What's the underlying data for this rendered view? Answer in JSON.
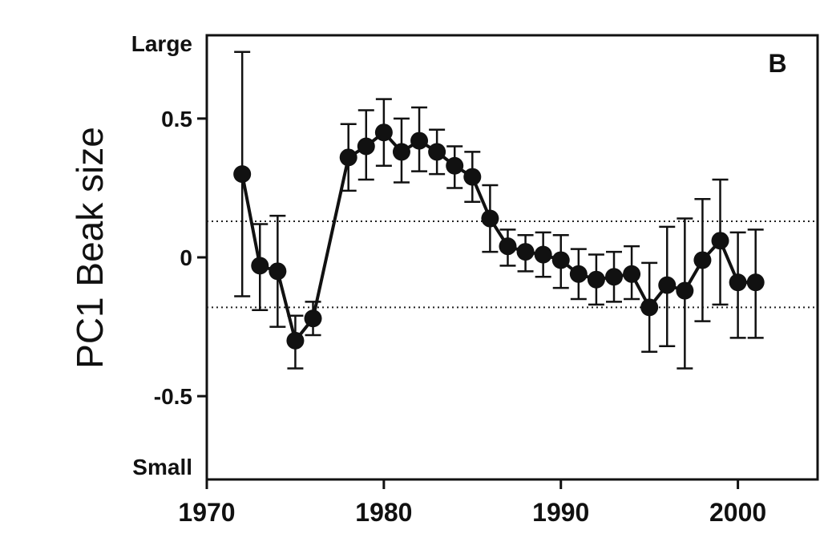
{
  "chart_data": {
    "type": "line",
    "panel_label": "B",
    "ylabel": "PC1 Beak size",
    "y_end_labels": {
      "top": "Large",
      "bottom": "Small"
    },
    "x_ticks": [
      "1970",
      "1980",
      "1990",
      "2000"
    ],
    "y_ticks": [
      "0.5",
      "0",
      "-0.5"
    ],
    "xlim": [
      1970,
      2004.5
    ],
    "ylim": [
      -0.8,
      0.8
    ],
    "reference_lines": [
      0.13,
      -0.18
    ],
    "series": [
      {
        "x": [
          1972,
          1973,
          1974,
          1975,
          1976,
          1978,
          1979,
          1980,
          1981,
          1982,
          1983,
          1984,
          1985,
          1986,
          1987,
          1988,
          1989,
          1990,
          1991,
          1992,
          1993,
          1994,
          1995,
          1996,
          1997,
          1998,
          1999,
          2000,
          2001
        ],
        "y": [
          0.3,
          -0.03,
          -0.05,
          -0.3,
          -0.22,
          0.36,
          0.4,
          0.45,
          0.38,
          0.42,
          0.38,
          0.33,
          0.29,
          0.14,
          0.04,
          0.02,
          0.01,
          -0.01,
          -0.06,
          -0.08,
          -0.07,
          -0.06,
          -0.18,
          -0.1,
          -0.12,
          -0.01,
          0.06,
          -0.09,
          -0.09
        ],
        "error_upper": [
          0.74,
          0.12,
          0.15,
          -0.21,
          -0.16,
          0.48,
          0.53,
          0.57,
          0.5,
          0.54,
          0.46,
          0.4,
          0.38,
          0.26,
          0.1,
          0.08,
          0.09,
          0.08,
          0.03,
          0.01,
          0.02,
          0.04,
          -0.02,
          0.11,
          0.14,
          0.21,
          0.28,
          0.09,
          0.1
        ],
        "error_lower": [
          -0.14,
          -0.19,
          -0.25,
          -0.4,
          -0.28,
          0.24,
          0.28,
          0.33,
          0.27,
          0.31,
          0.3,
          0.25,
          0.2,
          0.02,
          -0.03,
          -0.05,
          -0.07,
          -0.11,
          -0.15,
          -0.17,
          -0.16,
          -0.15,
          -0.34,
          -0.32,
          -0.4,
          -0.23,
          -0.17,
          -0.29,
          -0.29
        ]
      }
    ]
  }
}
